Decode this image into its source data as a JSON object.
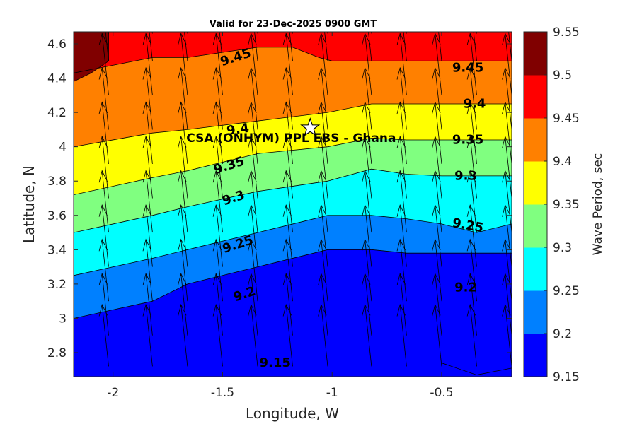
{
  "chart_data": {
    "type": "contour",
    "title": "Valid for 23-Dec-2025 0900 GMT",
    "xlabel": "Longitude, W",
    "ylabel": "Latitude, N",
    "colorbar_label": "Wave Period, sec",
    "xlim": [
      -2.18,
      -0.18
    ],
    "ylim": [
      2.66,
      4.67
    ],
    "x_ticks": [
      -2,
      -1.5,
      -1,
      -0.5
    ],
    "x_tick_labels": [
      "-2",
      "-1.5",
      "-1",
      "-0.5"
    ],
    "y_ticks": [
      2.8,
      3,
      3.2,
      3.4,
      3.6,
      3.8,
      4,
      4.2,
      4.4,
      4.6
    ],
    "y_tick_labels": [
      "2.8",
      "3",
      "3.2",
      "3.4",
      "3.6",
      "3.8",
      "4",
      "4.2",
      "4.4",
      "4.6"
    ],
    "levels": [
      9.15,
      9.2,
      9.25,
      9.3,
      9.35,
      9.4,
      9.45,
      9.5,
      9.55
    ],
    "level_labels": [
      "9.15",
      "9.2",
      "9.25",
      "9.3",
      "9.35",
      "9.4",
      "9.45",
      "9.5",
      "9.55"
    ],
    "level_colors": [
      "#0000ff",
      "#0080ff",
      "#00ffff",
      "#80ff80",
      "#ffff00",
      "#ff8000",
      "#ff0000",
      "#800000"
    ],
    "contours": [
      {
        "level": 9.2,
        "points": [
          [
            -2.18,
            3.0
          ],
          [
            -1.82,
            3.1
          ],
          [
            -1.66,
            3.2
          ],
          [
            -1.34,
            3.3
          ],
          [
            -1.02,
            3.4
          ],
          [
            -0.82,
            3.4
          ],
          [
            -0.66,
            3.38
          ],
          [
            -0.5,
            3.38
          ],
          [
            -0.18,
            3.38
          ]
        ]
      },
      {
        "level": 9.25,
        "points": [
          [
            -2.18,
            3.25
          ],
          [
            -1.82,
            3.35
          ],
          [
            -1.66,
            3.4
          ],
          [
            -1.34,
            3.5
          ],
          [
            -1.02,
            3.6
          ],
          [
            -0.82,
            3.6
          ],
          [
            -0.66,
            3.58
          ],
          [
            -0.5,
            3.55
          ],
          [
            -0.34,
            3.5
          ],
          [
            -0.18,
            3.55
          ]
        ]
      },
      {
        "level": 9.3,
        "points": [
          [
            -2.18,
            3.5
          ],
          [
            -1.82,
            3.6
          ],
          [
            -1.66,
            3.65
          ],
          [
            -1.34,
            3.74
          ],
          [
            -1.02,
            3.8
          ],
          [
            -0.82,
            3.87
          ],
          [
            -0.66,
            3.84
          ],
          [
            -0.5,
            3.83
          ],
          [
            -0.18,
            3.83
          ]
        ]
      },
      {
        "level": 9.35,
        "points": [
          [
            -2.18,
            3.72
          ],
          [
            -1.82,
            3.82
          ],
          [
            -1.66,
            3.86
          ],
          [
            -1.34,
            3.96
          ],
          [
            -1.02,
            4.0
          ],
          [
            -0.82,
            4.05
          ],
          [
            -0.66,
            4.04
          ],
          [
            -0.5,
            4.04
          ],
          [
            -0.18,
            4.04
          ]
        ]
      },
      {
        "level": 9.4,
        "points": [
          [
            -2.18,
            4.0
          ],
          [
            -1.82,
            4.08
          ],
          [
            -1.66,
            4.1
          ],
          [
            -1.34,
            4.15
          ],
          [
            -1.02,
            4.2
          ],
          [
            -0.82,
            4.25
          ],
          [
            -0.66,
            4.25
          ],
          [
            -0.5,
            4.25
          ],
          [
            -0.18,
            4.25
          ]
        ]
      },
      {
        "level": 9.45,
        "points": [
          [
            -2.18,
            4.43
          ],
          [
            -1.82,
            4.52
          ],
          [
            -1.66,
            4.52
          ],
          [
            -1.34,
            4.58
          ],
          [
            -1.18,
            4.58
          ],
          [
            -1.06,
            4.52
          ],
          [
            -1.0,
            4.5
          ],
          [
            -0.82,
            4.5
          ],
          [
            -0.66,
            4.5
          ],
          [
            -0.5,
            4.5
          ],
          [
            -0.18,
            4.5
          ]
        ]
      },
      {
        "level": 9.5,
        "points": [
          [
            -2.18,
            4.38
          ],
          [
            -2.1,
            4.43
          ],
          [
            -2.02,
            4.5
          ],
          [
            -2.02,
            4.67
          ]
        ]
      }
    ],
    "contour_labels": [
      {
        "text": "9.45",
        "lon": -1.44,
        "lat": 4.52,
        "angle": -18
      },
      {
        "text": "9.45",
        "lon": -0.38,
        "lat": 4.46,
        "angle": 0
      },
      {
        "text": "9.4",
        "lon": -0.35,
        "lat": 4.25,
        "angle": 0
      },
      {
        "text": "9.4",
        "lon": -1.43,
        "lat": 4.1,
        "angle": -8
      },
      {
        "text": "9.35",
        "lon": -0.38,
        "lat": 4.04,
        "angle": 0
      },
      {
        "text": "9.35",
        "lon": -1.47,
        "lat": 3.89,
        "angle": -18
      },
      {
        "text": "9.3",
        "lon": -0.39,
        "lat": 3.83,
        "angle": 0
      },
      {
        "text": "9.3",
        "lon": -1.45,
        "lat": 3.7,
        "angle": -18
      },
      {
        "text": "9.25",
        "lon": -0.38,
        "lat": 3.54,
        "angle": 10
      },
      {
        "text": "9.25",
        "lon": -1.43,
        "lat": 3.43,
        "angle": -18
      },
      {
        "text": "9.2",
        "lon": -0.39,
        "lat": 3.18,
        "angle": 0
      },
      {
        "text": "9.2",
        "lon": -1.4,
        "lat": 3.14,
        "angle": -18
      },
      {
        "text": "9.15",
        "lon": -1.26,
        "lat": 2.74,
        "angle": 0
      }
    ],
    "site": {
      "name": "CSA (ONHYM) PPL EBS  - Ghana",
      "lon": -1.1,
      "lat": 4.11
    },
    "wave_direction_arrows": {
      "x": [
        -2.02,
        -1.82,
        -1.66,
        -1.5,
        -1.34,
        -1.18,
        -1.02,
        -0.82,
        -0.66,
        -0.5,
        -0.34,
        -0.18
      ],
      "y": [
        2.72,
        2.9,
        3.1,
        3.3,
        3.5,
        3.7,
        3.9,
        4.1,
        4.3,
        4.5,
        4.66
      ],
      "dx": -0.03,
      "dy": 0.36
    }
  }
}
